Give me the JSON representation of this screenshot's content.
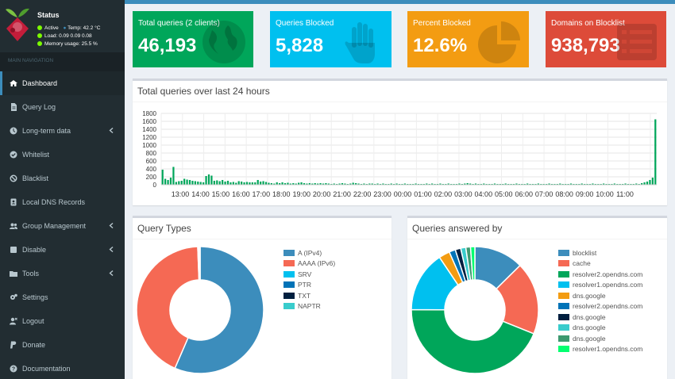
{
  "status": {
    "title": "Status",
    "active_label": "Active",
    "temp_label": "Temp: 42.2 °C",
    "load_label": "Load:  0.09  0.09  0.08",
    "memory_label": "Memory usage:  25.5 %"
  },
  "nav": {
    "header": "MAIN NAVIGATION",
    "items": [
      {
        "label": "Dashboard",
        "icon": "home-icon",
        "caret": false
      },
      {
        "label": "Query Log",
        "icon": "file-icon",
        "caret": false
      },
      {
        "label": "Long-term data",
        "icon": "clock-icon",
        "caret": true
      },
      {
        "label": "Whitelist",
        "icon": "check-circle-icon",
        "caret": false
      },
      {
        "label": "Blacklist",
        "icon": "ban-icon",
        "caret": false
      },
      {
        "label": "Local DNS Records",
        "icon": "address-book-icon",
        "caret": false
      },
      {
        "label": "Group Management",
        "icon": "users-icon",
        "caret": true
      },
      {
        "label": "Disable",
        "icon": "stop-icon",
        "caret": true
      },
      {
        "label": "Tools",
        "icon": "folder-icon",
        "caret": true
      },
      {
        "label": "Settings",
        "icon": "cogs-icon",
        "caret": false
      },
      {
        "label": "Logout",
        "icon": "user-times-icon",
        "caret": false
      },
      {
        "label": "Donate",
        "icon": "paypal-icon",
        "caret": false
      },
      {
        "label": "Documentation",
        "icon": "question-circle-icon",
        "caret": false
      }
    ]
  },
  "boxes": [
    {
      "label": "Total queries (2 clients)",
      "value": "46,193",
      "color": "#00a65a",
      "icon": "globe-icon"
    },
    {
      "label": "Queries Blocked",
      "value": "5,828",
      "color": "#00c0ef",
      "icon": "hand-icon"
    },
    {
      "label": "Percent Blocked",
      "value": "12.6%",
      "color": "#f39c12",
      "icon": "pie-chart-icon"
    },
    {
      "label": "Domains on Blocklist",
      "value": "938,793",
      "color": "#dd4b39",
      "icon": "list-icon"
    }
  ],
  "panels": {
    "queries_title": "Total queries over last 24 hours",
    "types_title": "Query Types",
    "answered_title": "Queries answered by"
  },
  "chart_data": [
    {
      "type": "bar",
      "stacked": true,
      "yticks": [
        0,
        200,
        400,
        600,
        800,
        1000,
        1200,
        1400,
        1600,
        1800
      ],
      "ylim": [
        0,
        1800
      ],
      "grid": true,
      "xticks": [
        "13:00",
        "14:00",
        "15:00",
        "16:00",
        "17:00",
        "18:00",
        "19:00",
        "20:00",
        "21:00",
        "22:00",
        "23:00",
        "00:00",
        "01:00",
        "02:00",
        "03:00",
        "04:00",
        "05:00",
        "06:00",
        "07:00",
        "08:00",
        "09:00",
        "10:00",
        "11:00"
      ],
      "colors": {
        "permitted": "#00a65a",
        "blocked": "#999999"
      },
      "series": [
        {
          "values": [
            380,
            150,
            120,
            180,
            450,
            70,
            90,
            100,
            150,
            130,
            120,
            100,
            90,
            80,
            70,
            60,
            220,
            260,
            230,
            100,
            110,
            90,
            120,
            80,
            100,
            60,
            70,
            50,
            90,
            80,
            60,
            70,
            60,
            60,
            60,
            120,
            80,
            90,
            70,
            50,
            40,
            30,
            60,
            40,
            60,
            40,
            50,
            30,
            40,
            30,
            50,
            60,
            40,
            30,
            40,
            30,
            40,
            30,
            40,
            30,
            40,
            30,
            20,
            30,
            20,
            30,
            40,
            30,
            20,
            30,
            50,
            40,
            30,
            20,
            30,
            20,
            30,
            30,
            20,
            30,
            20,
            30,
            20,
            20,
            30,
            20,
            30,
            20,
            20,
            30,
            20,
            20,
            20,
            30,
            20,
            20,
            20,
            30,
            20,
            30,
            20,
            20,
            30,
            20,
            20,
            30,
            20,
            20,
            20,
            30,
            20,
            30,
            40,
            30,
            20,
            30,
            20,
            20,
            30,
            20,
            20,
            20,
            30,
            20,
            20,
            20,
            30,
            20,
            20,
            20,
            30,
            20,
            20,
            20,
            30,
            20,
            20,
            20,
            30,
            20,
            20,
            20,
            30,
            20,
            20,
            20,
            30,
            20,
            20,
            20,
            30,
            20,
            20,
            20,
            30,
            20,
            20,
            20,
            30,
            20,
            20,
            20,
            30,
            20,
            20,
            20,
            30,
            20,
            20,
            20,
            30,
            20,
            20,
            20,
            30,
            20,
            40,
            60,
            80,
            120,
            180,
            1650
          ]
        },
        {
          "values": [
            0,
            0,
            0,
            0,
            0,
            0,
            0,
            0,
            0,
            0,
            0,
            0,
            0,
            0,
            0,
            0,
            0,
            0,
            0,
            0,
            0,
            0,
            0,
            0,
            0,
            0,
            0,
            0,
            0,
            0,
            0,
            0,
            0,
            0,
            0,
            0,
            0,
            0,
            0,
            0,
            0,
            0,
            0,
            0,
            0,
            0,
            0,
            0,
            0,
            0,
            0,
            0,
            0,
            0,
            0,
            0,
            0,
            0,
            0,
            0,
            0,
            0,
            0,
            0,
            0,
            0,
            0,
            0,
            0,
            0,
            0,
            0,
            0,
            0,
            0,
            0,
            0,
            0,
            0,
            0,
            0,
            0,
            0,
            0,
            0,
            0,
            0,
            0,
            0,
            0,
            0,
            0,
            0,
            0,
            0,
            0,
            0,
            0,
            0,
            0,
            0,
            0,
            0,
            0,
            0,
            0,
            0,
            0,
            0,
            0,
            0,
            0,
            0,
            0,
            0,
            0,
            0,
            0,
            0,
            0,
            0,
            0,
            0,
            0,
            0,
            0,
            0,
            0,
            0,
            0,
            0,
            0,
            0,
            0,
            0,
            0,
            0,
            0,
            0,
            0,
            0,
            0,
            0,
            0,
            0,
            0,
            0,
            0,
            0,
            0,
            0,
            0,
            0,
            0,
            0,
            0,
            0,
            0,
            0,
            0,
            0,
            0,
            0,
            0,
            0,
            0,
            0,
            0,
            0,
            0,
            0,
            0,
            0,
            0,
            0,
            0,
            0,
            0,
            0,
            0,
            0,
            0,
            0
          ]
        }
      ]
    },
    {
      "type": "pie",
      "subtype": "doughnut",
      "labels": [
        "A (IPv4)",
        "AAAA (IPv6)",
        "SRV",
        "PTR",
        "TXT",
        "NAPTR"
      ],
      "values": [
        56.5,
        42.9,
        0.3,
        0.2,
        0.05,
        0.05
      ],
      "colors": [
        "#3c8dbc",
        "#f56954",
        "#00c0ef",
        "#0073b7",
        "#001f3f",
        "#39cccc"
      ]
    },
    {
      "type": "pie",
      "subtype": "doughnut",
      "labels": [
        "blocklist",
        "cache",
        "resolver2.opendns.com",
        "resolver1.opendns.com",
        "dns.google",
        "resolver2.opendns.com",
        "dns.google",
        "dns.google",
        "dns.google",
        "resolver1.opendns.com"
      ],
      "values": [
        12.6,
        18.5,
        44.0,
        15.5,
        2.8,
        1.6,
        1.4,
        1.3,
        1.2,
        1.1
      ],
      "colors": [
        "#3c8dbc",
        "#f56954",
        "#00a65a",
        "#00c0ef",
        "#f39c12",
        "#0073b7",
        "#001f3f",
        "#39cccc",
        "#3d9970",
        "#01ff70"
      ]
    }
  ]
}
